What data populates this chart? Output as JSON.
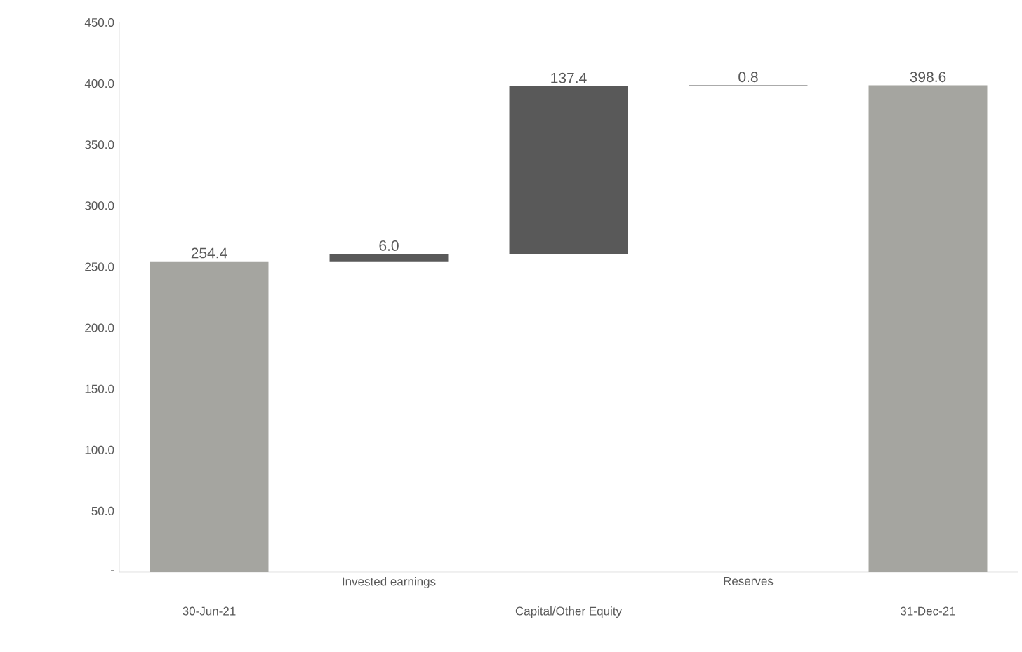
{
  "chart_data": {
    "type": "bar",
    "categories": [
      "30-Jun-21",
      "Invested earnings",
      "Capital/Other Equity",
      "Reserves",
      "31-Dec-21"
    ],
    "values": [
      254.4,
      6.0,
      137.4,
      0.8,
      398.6
    ],
    "base": [
      0,
      254.4,
      260.4,
      397.8,
      0
    ],
    "colors": [
      "#a5a5a0",
      "#595959",
      "#595959",
      "#595959",
      "#a5a5a0"
    ],
    "value_labels": [
      "254.4",
      "6.0",
      "137.4",
      "0.8",
      "398.6"
    ],
    "ylim": [
      0,
      450
    ],
    "yticks": [
      {
        "value": 0,
        "label": "-"
      },
      {
        "value": 50,
        "label": "50.0"
      },
      {
        "value": 100,
        "label": "100.0"
      },
      {
        "value": 150,
        "label": "150.0"
      },
      {
        "value": 200,
        "label": "200.0"
      },
      {
        "value": 250,
        "label": "250.0"
      },
      {
        "value": 300,
        "label": "300.0"
      },
      {
        "value": 350,
        "label": "350.0"
      },
      {
        "value": 400,
        "label": "400.0"
      },
      {
        "value": 450,
        "label": "450.0"
      }
    ]
  }
}
